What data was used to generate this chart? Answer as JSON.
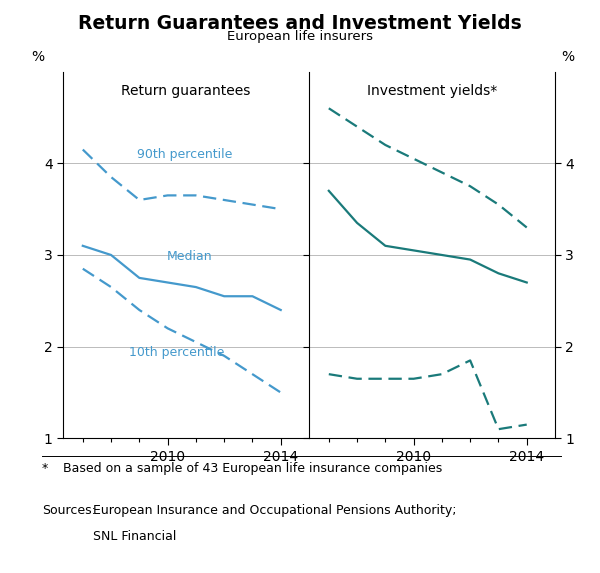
{
  "title": "Return Guarantees and Investment Yields",
  "subtitle": "European life insurers",
  "left_panel_title": "Return guarantees",
  "right_panel_title": "Investment yields*",
  "ylabel_left": "%",
  "ylabel_right": "%",
  "ylim": [
    1,
    5
  ],
  "yticks": [
    1,
    2,
    3,
    4
  ],
  "left_years": [
    2007,
    2008,
    2009,
    2010,
    2011,
    2012,
    2013,
    2014
  ],
  "left_90th": [
    4.15,
    3.85,
    3.6,
    3.65,
    3.65,
    3.6,
    3.55,
    3.5
  ],
  "left_median": [
    3.1,
    3.0,
    2.75,
    2.7,
    2.65,
    2.55,
    2.55,
    2.4
  ],
  "left_10th": [
    2.85,
    2.65,
    2.4,
    2.2,
    2.05,
    1.9,
    1.7,
    1.5
  ],
  "right_years": [
    2007,
    2008,
    2009,
    2010,
    2011,
    2012,
    2013,
    2014
  ],
  "right_90th": [
    4.6,
    4.4,
    4.2,
    4.05,
    3.9,
    3.75,
    3.55,
    3.3
  ],
  "right_median": [
    3.7,
    3.35,
    3.1,
    3.05,
    3.0,
    2.95,
    2.8,
    2.7
  ],
  "right_10th": [
    1.7,
    1.65,
    1.65,
    1.65,
    1.7,
    1.85,
    1.1,
    1.15
  ],
  "left_color": "#4499CC",
  "right_color": "#1A7A7A",
  "label_90th": "90th percentile",
  "label_median": "Median",
  "label_10th": "10th percentile",
  "footnote_star": "*",
  "footnote_text": "Based on a sample of 43 European life insurance companies",
  "sources_label": "Sources:",
  "sources_line1": "European Insurance and Occupational Pensions Authority;",
  "sources_line2": "SNL Financial"
}
